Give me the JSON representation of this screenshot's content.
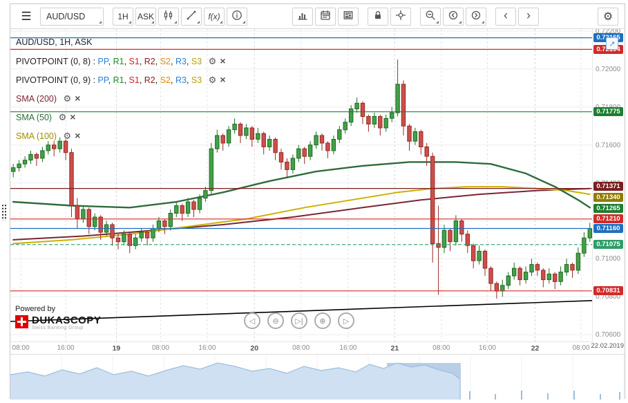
{
  "toolbar": {
    "menu": "☰",
    "symbol": "AUD/USD",
    "timeframe": "1H",
    "price_side": "ASK",
    "fx": "f(x)",
    "prev": "‹",
    "next": "›",
    "gear": "⚙"
  },
  "legend": {
    "title": "AUD/USD, 1H, ASK",
    "gear": "⚙",
    "close": "×",
    "rows": [
      {
        "name": "PIVOTPOINT (0, 8)",
        "series": [
          [
            "PP",
            "#2a7fd4"
          ],
          [
            "R1",
            "#1e8c1e"
          ],
          [
            "S1",
            "#d02020"
          ],
          [
            "R2",
            "#8b1a1a"
          ],
          [
            "S2",
            "#e08a00"
          ],
          [
            "R3",
            "#2a7fd4"
          ],
          [
            "S3",
            "#b8a000"
          ]
        ]
      },
      {
        "name": "PIVOTPOINT (0, 9)",
        "series": [
          [
            "PP",
            "#2a7fd4"
          ],
          [
            "R1",
            "#1e8c1e"
          ],
          [
            "S1",
            "#d02020"
          ],
          [
            "R2",
            "#8b1a1a"
          ],
          [
            "S2",
            "#e08a00"
          ],
          [
            "R3",
            "#2a7fd4"
          ],
          [
            "S3",
            "#b8a000"
          ]
        ]
      },
      {
        "name": "SMA (200)",
        "color": "#7a2533"
      },
      {
        "name": "SMA (50)",
        "color": "#2e6b3a"
      },
      {
        "name": "SMA (100)",
        "color": "#a08c00"
      }
    ]
  },
  "misc": {
    "expand": "↗",
    "date": "22.02.2019",
    "powered_by": "Powered by",
    "brand": "DUKASCOPY",
    "tagline": "Swiss Banking Group"
  },
  "chart_data": {
    "type": "candlestick",
    "symbol": "AUD/USD",
    "period": "1H",
    "side": "ASK",
    "current_price": "0.71160",
    "price_unit": 0.0001,
    "colors": {
      "up": "#43a047",
      "up_stroke": "#1d6b22",
      "down": "#cc4f4b",
      "down_stroke": "#962823"
    },
    "candles": [
      [
        7146,
        7150,
        7143,
        7148
      ],
      [
        7148,
        7152,
        7146,
        7150
      ],
      [
        7150,
        7154,
        7148,
        7152
      ],
      [
        7152,
        7157,
        7150,
        7155
      ],
      [
        7155,
        7156,
        7149,
        7153
      ],
      [
        7153,
        7159,
        7151,
        7157
      ],
      [
        7157,
        7162,
        7155,
        7160
      ],
      [
        7160,
        7162,
        7154,
        7158
      ],
      [
        7158,
        7164,
        7156,
        7162
      ],
      [
        7162,
        7163,
        7152,
        7156
      ],
      [
        7156,
        7158,
        7122,
        7128
      ],
      [
        7128,
        7132,
        7116,
        7121
      ],
      [
        7121,
        7128,
        7119,
        7126
      ],
      [
        7126,
        7127,
        7113,
        7117
      ],
      [
        7117,
        7124,
        7115,
        7122
      ],
      [
        7122,
        7123,
        7110,
        7114
      ],
      [
        7114,
        7120,
        7112,
        7118
      ],
      [
        7118,
        7119,
        7107,
        7111
      ],
      [
        7111,
        7113,
        7105,
        7109
      ],
      [
        7109,
        7115,
        7107,
        7113
      ],
      [
        7113,
        7114,
        7103,
        7107
      ],
      [
        7107,
        7113,
        7105,
        7111
      ],
      [
        7111,
        7116,
        7109,
        7114
      ],
      [
        7114,
        7115,
        7107,
        7111
      ],
      [
        7111,
        7118,
        7109,
        7116
      ],
      [
        7116,
        7122,
        7114,
        7120
      ],
      [
        7120,
        7121,
        7113,
        7117
      ],
      [
        7117,
        7126,
        7115,
        7124
      ],
      [
        7124,
        7130,
        7122,
        7128
      ],
      [
        7128,
        7129,
        7120,
        7124
      ],
      [
        7124,
        7132,
        7122,
        7130
      ],
      [
        7130,
        7131,
        7122,
        7126
      ],
      [
        7126,
        7134,
        7124,
        7132
      ],
      [
        7132,
        7138,
        7130,
        7136
      ],
      [
        7136,
        7161,
        7134,
        7158
      ],
      [
        7158,
        7168,
        7156,
        7165
      ],
      [
        7165,
        7166,
        7157,
        7161
      ],
      [
        7161,
        7170,
        7159,
        7168
      ],
      [
        7168,
        7174,
        7166,
        7171
      ],
      [
        7171,
        7172,
        7161,
        7165
      ],
      [
        7165,
        7171,
        7163,
        7169
      ],
      [
        7169,
        7170,
        7159,
        7163
      ],
      [
        7163,
        7169,
        7161,
        7166
      ],
      [
        7166,
        7167,
        7155,
        7159
      ],
      [
        7159,
        7165,
        7157,
        7163
      ],
      [
        7163,
        7164,
        7152,
        7156
      ],
      [
        7156,
        7158,
        7147,
        7151
      ],
      [
        7151,
        7153,
        7143,
        7147
      ],
      [
        7147,
        7155,
        7145,
        7153
      ],
      [
        7153,
        7160,
        7151,
        7158
      ],
      [
        7158,
        7159,
        7150,
        7154
      ],
      [
        7154,
        7162,
        7152,
        7160
      ],
      [
        7160,
        7167,
        7158,
        7165
      ],
      [
        7165,
        7166,
        7157,
        7161
      ],
      [
        7161,
        7162,
        7153,
        7157
      ],
      [
        7157,
        7165,
        7155,
        7163
      ],
      [
        7163,
        7170,
        7161,
        7168
      ],
      [
        7168,
        7174,
        7166,
        7172
      ],
      [
        7172,
        7181,
        7170,
        7179
      ],
      [
        7179,
        7185,
        7177,
        7182
      ],
      [
        7182,
        7183,
        7171,
        7175
      ],
      [
        7175,
        7176,
        7167,
        7171
      ],
      [
        7171,
        7177,
        7169,
        7175
      ],
      [
        7175,
        7176,
        7165,
        7169
      ],
      [
        7169,
        7176,
        7167,
        7174
      ],
      [
        7174,
        7180,
        7172,
        7177
      ],
      [
        7177,
        7205,
        7175,
        7192
      ],
      [
        7192,
        7194,
        7165,
        7170
      ],
      [
        7170,
        7171,
        7157,
        7162
      ],
      [
        7162,
        7169,
        7160,
        7167
      ],
      [
        7167,
        7168,
        7155,
        7159
      ],
      [
        7159,
        7161,
        7149,
        7154
      ],
      [
        7154,
        7156,
        7098,
        7108
      ],
      [
        7108,
        7128,
        7081,
        7106
      ],
      [
        7106,
        7118,
        7103,
        7115
      ],
      [
        7115,
        7116,
        7104,
        7109
      ],
      [
        7109,
        7123,
        7107,
        7120
      ],
      [
        7120,
        7121,
        7109,
        7113
      ],
      [
        7113,
        7115,
        7103,
        7107
      ],
      [
        7107,
        7108,
        7095,
        7099
      ],
      [
        7099,
        7107,
        7097,
        7104
      ],
      [
        7104,
        7105,
        7091,
        7095
      ],
      [
        7095,
        7096,
        7083,
        7087
      ],
      [
        7087,
        7088,
        7079,
        7083
      ],
      [
        7083,
        7089,
        7080,
        7086
      ],
      [
        7086,
        7093,
        7084,
        7091
      ],
      [
        7091,
        7098,
        7089,
        7095
      ],
      [
        7095,
        7096,
        7086,
        7089
      ],
      [
        7089,
        7096,
        7087,
        7093
      ],
      [
        7093,
        7100,
        7091,
        7097
      ],
      [
        7097,
        7098,
        7091,
        7094
      ],
      [
        7094,
        7095,
        7085,
        7089
      ],
      [
        7089,
        7095,
        7087,
        7092
      ],
      [
        7092,
        7093,
        7084,
        7088
      ],
      [
        7088,
        7096,
        7086,
        7093
      ],
      [
        7093,
        7100,
        7091,
        7097
      ],
      [
        7097,
        7098,
        7090,
        7094
      ],
      [
        7094,
        7106,
        7092,
        7103
      ],
      [
        7103,
        7114,
        7101,
        7111
      ],
      [
        7111,
        7119,
        7109,
        7116
      ]
    ],
    "sma": {
      "sma200": {
        "color": "#7a2533",
        "width": 2,
        "points": [
          [
            0,
            7110
          ],
          [
            12,
            7112
          ],
          [
            24,
            7115
          ],
          [
            36,
            7118
          ],
          [
            48,
            7122
          ],
          [
            60,
            7127
          ],
          [
            70,
            7131
          ],
          [
            80,
            7134
          ],
          [
            90,
            7136
          ],
          [
            99,
            7137
          ]
        ]
      },
      "sma100": {
        "color": "#ccb000",
        "width": 2,
        "points": [
          [
            0,
            7108
          ],
          [
            10,
            7110
          ],
          [
            20,
            7113
          ],
          [
            30,
            7117
          ],
          [
            40,
            7121
          ],
          [
            50,
            7127
          ],
          [
            58,
            7131
          ],
          [
            66,
            7135
          ],
          [
            72,
            7137
          ],
          [
            78,
            7138
          ],
          [
            84,
            7138
          ],
          [
            90,
            7137
          ],
          [
            95,
            7136
          ],
          [
            99,
            7134
          ]
        ]
      },
      "sma50": {
        "color": "#2f6b3c",
        "width": 2.4,
        "points": [
          [
            0,
            7130
          ],
          [
            10,
            7128
          ],
          [
            20,
            7127
          ],
          [
            28,
            7130
          ],
          [
            36,
            7135
          ],
          [
            44,
            7141
          ],
          [
            52,
            7146
          ],
          [
            60,
            7149
          ],
          [
            68,
            7151
          ],
          [
            76,
            7151
          ],
          [
            82,
            7150
          ],
          [
            88,
            7145
          ],
          [
            93,
            7138
          ],
          [
            97,
            7131
          ],
          [
            99,
            7127
          ]
        ]
      }
    },
    "levels": [
      {
        "p": 7216.5,
        "color": "#1d6fc0",
        "dash": ""
      },
      {
        "p": 7210.4,
        "color": "#d22a2a",
        "dash": ""
      },
      {
        "p": 7177.5,
        "color": "#1e7d32",
        "dash": ""
      },
      {
        "p": 7137.1,
        "color": "#7a1f1f",
        "dash": ""
      },
      {
        "p": 7121.0,
        "color": "#d22a2a",
        "dash": ""
      },
      {
        "p": 7116.0,
        "color": "#1d6fc0",
        "dash": ""
      },
      {
        "p": 7107.5,
        "color": "#2e9e68",
        "dash": "5,3"
      },
      {
        "p": 7083.1,
        "color": "#d22a2a",
        "dash": ""
      }
    ],
    "trendline": {
      "p1": 7067,
      "p2": 7078,
      "color": "#000000"
    },
    "y_axis": {
      "ticks": [
        7220,
        7200,
        7180,
        7160,
        7140,
        7120,
        7100,
        7080,
        7060
      ]
    },
    "badges": [
      {
        "value": "0.72165",
        "color": "#1d6fc0",
        "dy": 0
      },
      {
        "value": "0.72104",
        "color": "#d22a2a",
        "dy": 0
      },
      {
        "value": "0.71775",
        "color": "#1e7d32",
        "dy": 0
      },
      {
        "value": "0.71371",
        "color": "#7a1f1f",
        "dy": -3
      },
      {
        "value": "0.71340",
        "color": "#8f7d00",
        "dy": 4
      },
      {
        "value": "0.71265",
        "color": "#1e7d32",
        "dy": 0
      },
      {
        "value": "0.71210",
        "color": "#d22a2a",
        "dy": 0
      },
      {
        "value": "0.71160",
        "color": "#1d6fc0",
        "dy": 0
      },
      {
        "value": "0.71075",
        "color": "#2e9e68",
        "dy": 0
      },
      {
        "value": "0.70831",
        "color": "#d22a2a",
        "dy": 0
      }
    ],
    "x_axis": {
      "ticks": [
        {
          "label": "08:00",
          "f": 0.018
        },
        {
          "label": "16:00",
          "f": 0.095
        },
        {
          "label": "19",
          "f": 0.182,
          "day": true
        },
        {
          "label": "08:00",
          "f": 0.258
        },
        {
          "label": "16:00",
          "f": 0.338
        },
        {
          "label": "20",
          "f": 0.419,
          "day": true
        },
        {
          "label": "08:00",
          "f": 0.499
        },
        {
          "label": "16:00",
          "f": 0.58
        },
        {
          "label": "21",
          "f": 0.66,
          "day": true
        },
        {
          "label": "08:00",
          "f": 0.74
        },
        {
          "label": "16:00",
          "f": 0.819
        },
        {
          "label": "22",
          "f": 0.901,
          "day": true
        },
        {
          "label": "08:00",
          "f": 0.98
        }
      ]
    },
    "playback": [
      "◁",
      "⊖",
      "▷|",
      "⊕",
      "▷"
    ]
  },
  "navigator": {
    "fill": "#cfe0f2",
    "line": "#9cbede",
    "dense_fill": "#b9cfe6",
    "profile": [
      [
        0,
        26
      ],
      [
        25,
        22
      ],
      [
        50,
        28
      ],
      [
        75,
        19
      ],
      [
        100,
        25
      ],
      [
        125,
        16
      ],
      [
        150,
        26
      ],
      [
        175,
        21
      ],
      [
        200,
        28
      ],
      [
        225,
        20
      ],
      [
        250,
        13
      ],
      [
        275,
        18
      ],
      [
        300,
        9
      ],
      [
        325,
        14
      ],
      [
        350,
        21
      ],
      [
        375,
        17
      ],
      [
        400,
        24
      ],
      [
        425,
        14
      ],
      [
        450,
        20
      ],
      [
        475,
        16
      ],
      [
        500,
        22
      ],
      [
        520,
        11
      ],
      [
        540,
        17
      ],
      [
        560,
        9
      ],
      [
        580,
        15
      ],
      [
        600,
        12
      ],
      [
        620,
        19
      ],
      [
        640,
        24
      ],
      [
        650,
        32
      ]
    ],
    "stubs": [
      [
        665,
        12
      ],
      [
        702,
        8
      ],
      [
        740,
        13
      ],
      [
        778,
        9
      ],
      [
        816,
        13
      ],
      [
        854,
        8
      ],
      [
        882,
        11
      ]
    ]
  }
}
